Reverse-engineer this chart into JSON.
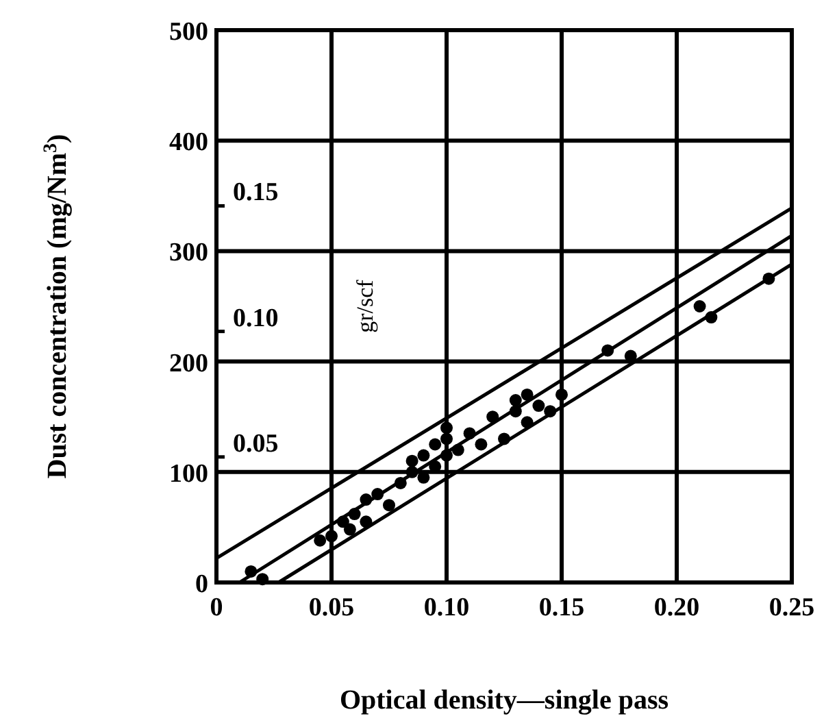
{
  "chart_data": {
    "type": "scatter",
    "xlabel": "Optical density—single pass",
    "ylabel": "Dust concentration (mg/Nm$^{3}$)",
    "y2label": "gr/scf",
    "xlim": [
      0,
      0.25
    ],
    "xticks": [
      {
        "value": 0,
        "label": "0"
      },
      {
        "value": 0.05,
        "label": "0.05"
      },
      {
        "value": 0.1,
        "label": "0.10"
      },
      {
        "value": 0.15,
        "label": "0.15"
      },
      {
        "value": 0.2,
        "label": "0.20"
      },
      {
        "value": 0.25,
        "label": "0.25"
      }
    ],
    "ylim": [
      0,
      500
    ],
    "yticks": [
      0,
      100,
      200,
      300,
      400,
      500
    ],
    "y2lim": [
      0,
      0.22
    ],
    "y2ticks": [
      {
        "value": 0.05,
        "label": "0.05"
      },
      {
        "value": 0.1,
        "label": "0.10"
      },
      {
        "value": 0.15,
        "label": "0.15"
      }
    ],
    "grid": true,
    "series": [
      {
        "marker": "circle",
        "color": "#000000",
        "x": [
          0.015,
          0.02,
          0.045,
          0.05,
          0.055,
          0.058,
          0.06,
          0.065,
          0.065,
          0.07,
          0.075,
          0.08,
          0.085,
          0.085,
          0.09,
          0.09,
          0.095,
          0.095,
          0.1,
          0.1,
          0.1,
          0.105,
          0.11,
          0.115,
          0.12,
          0.125,
          0.13,
          0.13,
          0.135,
          0.135,
          0.14,
          0.145,
          0.15,
          0.17,
          0.18,
          0.21,
          0.215,
          0.24
        ],
        "values": [
          10,
          3,
          38,
          42,
          55,
          48,
          62,
          75,
          55,
          80,
          70,
          90,
          100,
          110,
          95,
          115,
          105,
          125,
          130,
          140,
          115,
          120,
          135,
          125,
          150,
          130,
          165,
          155,
          145,
          170,
          160,
          155,
          170,
          210,
          205,
          250,
          240,
          275
        ]
      },
      {
        "type": "line",
        "color": "#000000",
        "x": [
          0,
          0.25
        ],
        "values": [
          22,
          339
        ]
      },
      {
        "type": "line",
        "color": "#000000",
        "x": [
          0.01,
          0.25
        ],
        "values": [
          0,
          314
        ]
      },
      {
        "type": "line",
        "color": "#000000",
        "x": [
          0.027,
          0.25
        ],
        "values": [
          0,
          288
        ]
      }
    ]
  }
}
